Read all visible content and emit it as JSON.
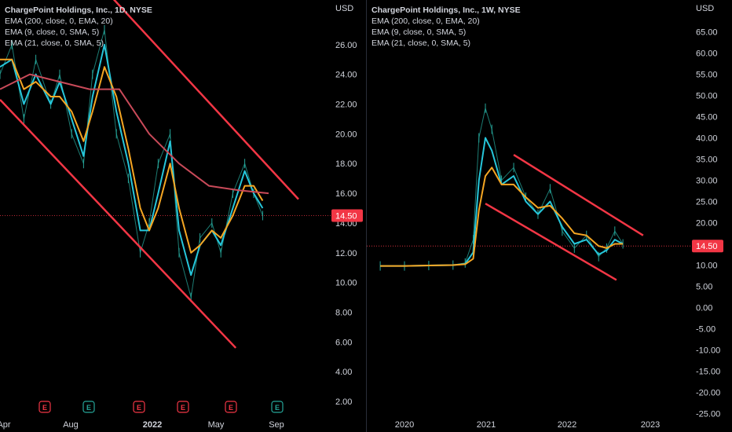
{
  "chart_data": [
    {
      "type": "line",
      "title": "ChargePoint Holdings, Inc., 1D, NYSE",
      "currency": "USD",
      "indicators": [
        "EMA (200, close, 0, EMA, 20)",
        "EMA (9, close, 0, SMA, 5)",
        "EMA (21, close, 0, SMA, 5)"
      ],
      "ylim": [
        1,
        29
      ],
      "y_ticks": [
        "2.00",
        "4.00",
        "6.00",
        "8.00",
        "10.00",
        "12.00",
        "14.00",
        "16.00",
        "18.00",
        "20.00",
        "22.00",
        "24.00",
        "26.00"
      ],
      "x_ticks": [
        "Apr",
        "Aug",
        "2022",
        "May",
        "Sep"
      ],
      "current_price": "14.50",
      "earnings_markers": [
        "E",
        "E",
        "E",
        "E",
        "E",
        "E"
      ],
      "series": [
        {
          "name": "price",
          "color": "#26a69a",
          "x": [
            0,
            0.04,
            0.08,
            0.12,
            0.17,
            0.2,
            0.24,
            0.28,
            0.31,
            0.35,
            0.39,
            0.43,
            0.47,
            0.5,
            0.53,
            0.57,
            0.6,
            0.64,
            0.67,
            0.71,
            0.74,
            0.78,
            0.82,
            0.85,
            0.88
          ],
          "values": [
            24,
            26,
            21,
            25,
            22,
            24,
            20,
            18,
            24,
            27,
            20,
            17,
            12,
            14,
            18,
            20,
            12,
            9,
            13,
            14,
            12,
            16,
            18,
            16,
            14.5
          ]
        },
        {
          "name": "EMA 9",
          "color": "#26c6da",
          "x": [
            0,
            0.04,
            0.08,
            0.12,
            0.17,
            0.2,
            0.24,
            0.28,
            0.31,
            0.35,
            0.39,
            0.43,
            0.47,
            0.5,
            0.53,
            0.57,
            0.6,
            0.64,
            0.67,
            0.71,
            0.74,
            0.78,
            0.82,
            0.85,
            0.88
          ],
          "values": [
            24.5,
            25,
            22,
            24,
            22,
            23.5,
            21,
            18.5,
            22.5,
            26,
            21.5,
            18,
            13.5,
            13.5,
            16,
            19.5,
            13.5,
            10.5,
            12.5,
            13.5,
            12.5,
            15,
            17.5,
            16,
            15
          ]
        },
        {
          "name": "EMA 21",
          "color": "#f5a623",
          "x": [
            0,
            0.04,
            0.08,
            0.12,
            0.17,
            0.2,
            0.24,
            0.28,
            0.31,
            0.35,
            0.39,
            0.43,
            0.47,
            0.5,
            0.53,
            0.57,
            0.6,
            0.64,
            0.67,
            0.71,
            0.74,
            0.78,
            0.82,
            0.85,
            0.88
          ],
          "values": [
            25,
            25,
            23,
            23.5,
            22.5,
            22.5,
            21.5,
            19.5,
            21.5,
            24.5,
            22.5,
            19,
            15,
            13.5,
            15,
            18,
            15,
            12,
            12.5,
            13.5,
            13,
            14.5,
            16.5,
            16.5,
            15.5
          ]
        },
        {
          "name": "EMA 200",
          "color": "#c94a59",
          "x": [
            0,
            0.1,
            0.2,
            0.3,
            0.4,
            0.5,
            0.6,
            0.7,
            0.8,
            0.9
          ],
          "values": [
            23,
            24,
            23.5,
            23,
            23,
            20,
            18,
            16.5,
            16.2,
            16
          ]
        }
      ],
      "channel": {
        "color": "#f23645",
        "upper": [
          [
            0.36,
            29.5
          ],
          [
            1.0,
            15.6
          ]
        ],
        "lower": [
          [
            0.0,
            22.3
          ],
          [
            0.79,
            5.6
          ]
        ]
      }
    },
    {
      "type": "line",
      "title": "ChargePoint Holdings, Inc., 1W, NYSE",
      "currency": "USD",
      "indicators": [
        "EMA (200, close, 0, EMA, 20)",
        "EMA (9, close, 0, SMA, 5)",
        "EMA (21, close, 0, SMA, 5)"
      ],
      "ylim": [
        -27.5,
        72.5
      ],
      "y_ticks": [
        "-25.00",
        "-20.00",
        "-15.00",
        "-10.00",
        "-5.00",
        "0.00",
        "5.00",
        "10.00",
        "15.00",
        "20.00",
        "25.00",
        "30.00",
        "35.00",
        "40.00",
        "45.00",
        "50.00",
        "55.00",
        "60.00",
        "65.00"
      ],
      "x_ticks": [
        "2020",
        "2021",
        "2022",
        "2023"
      ],
      "current_price": "14.50",
      "series": [
        {
          "name": "price",
          "color": "#26a69a",
          "x": [
            2019.7,
            2020.0,
            2020.3,
            2020.6,
            2020.75,
            2020.85,
            2020.92,
            2021.0,
            2021.08,
            2021.2,
            2021.35,
            2021.5,
            2021.65,
            2021.8,
            2021.95,
            2022.1,
            2022.25,
            2022.4,
            2022.5,
            2022.6,
            2022.7
          ],
          "values": [
            9.8,
            9.8,
            9.9,
            10,
            10.5,
            16,
            40,
            47,
            42,
            30,
            33,
            26,
            22,
            28,
            18,
            14,
            17,
            12,
            14,
            18,
            15
          ]
        },
        {
          "name": "EMA 9",
          "color": "#26c6da",
          "x": [
            2019.7,
            2020.0,
            2020.3,
            2020.6,
            2020.75,
            2020.85,
            2020.92,
            2021.0,
            2021.08,
            2021.2,
            2021.35,
            2021.5,
            2021.65,
            2021.8,
            2021.95,
            2022.1,
            2022.25,
            2022.4,
            2022.5,
            2022.6,
            2022.7
          ],
          "values": [
            9.8,
            9.8,
            9.9,
            10,
            10.3,
            13,
            30,
            40,
            37,
            29,
            31,
            25,
            22,
            25,
            19,
            15,
            16,
            12.5,
            13.5,
            16,
            15
          ]
        },
        {
          "name": "EMA 21",
          "color": "#f5a623",
          "x": [
            2019.7,
            2020.0,
            2020.3,
            2020.6,
            2020.75,
            2020.85,
            2020.92,
            2021.0,
            2021.08,
            2021.2,
            2021.35,
            2021.5,
            2021.65,
            2021.8,
            2021.95,
            2022.1,
            2022.25,
            2022.4,
            2022.5,
            2022.6,
            2022.7
          ],
          "values": [
            9.8,
            9.8,
            9.9,
            10,
            10.2,
            11.5,
            23,
            31,
            33,
            29,
            29,
            26,
            23.5,
            24,
            21,
            17.5,
            17,
            14.5,
            14,
            15,
            15
          ]
        }
      ],
      "channel": {
        "color": "#f23645",
        "upper": [
          [
            2021.35,
            36
          ],
          [
            2022.95,
            17
          ]
        ],
        "lower": [
          [
            2021.0,
            24.5
          ],
          [
            2022.62,
            6.5
          ]
        ]
      }
    }
  ]
}
